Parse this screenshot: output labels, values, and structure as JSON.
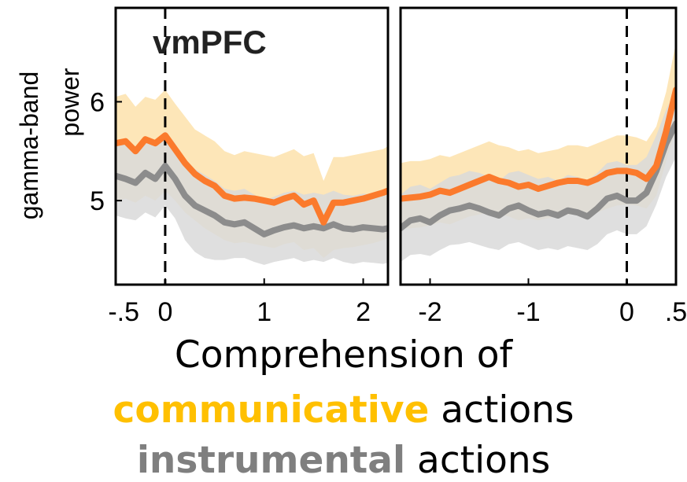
{
  "colors": {
    "communicative": "#f7a23c",
    "communicative_line": "#fb7a2c",
    "communicative_band": "#fde3b0",
    "instrumental": "#7d7d7d",
    "instrumental_line": "#8c8c8c",
    "instrumental_band": "#d9d9d9",
    "highlight_orange": "#ffc000",
    "highlight_gray": "#7f7f7f"
  },
  "caption": {
    "line1": "Comprehension of",
    "communicative_word": "communicative",
    "line2_rest": " actions",
    "instrumental_word": "instrumental",
    "line3_rest": " actions"
  },
  "chart_data": [
    {
      "type": "line",
      "title": "vmPFC",
      "ylabel": "gamma-band power",
      "xlabel": "",
      "xlim": [
        -0.5,
        2.25
      ],
      "ylim": [
        4.15,
        6.95
      ],
      "xticks": [
        -0.5,
        0,
        1,
        2
      ],
      "xtick_labels": [
        "-.5",
        "0",
        "1",
        "2"
      ],
      "yticks": [
        5,
        6
      ],
      "ytick_labels": [
        "5",
        "6"
      ],
      "event_line_x": 0,
      "series": [
        {
          "key": "communicative",
          "x": [
            -0.5,
            -0.4,
            -0.3,
            -0.2,
            -0.1,
            0,
            0.1,
            0.2,
            0.3,
            0.4,
            0.5,
            0.6,
            0.7,
            0.8,
            0.9,
            1.0,
            1.1,
            1.2,
            1.3,
            1.4,
            1.5,
            1.6,
            1.7,
            1.8,
            1.9,
            2.0,
            2.1,
            2.2,
            2.25
          ],
          "y": [
            5.58,
            5.6,
            5.5,
            5.62,
            5.58,
            5.66,
            5.52,
            5.38,
            5.27,
            5.2,
            5.15,
            5.05,
            5.02,
            5.03,
            5.02,
            5.0,
            4.98,
            5.02,
            5.05,
            4.96,
            5.0,
            4.78,
            4.98,
            4.98,
            5.0,
            5.02,
            5.05,
            5.08,
            5.1
          ],
          "lower": [
            5.0,
            5.02,
            4.98,
            5.05,
            5.0,
            5.1,
            5.0,
            4.88,
            4.8,
            4.72,
            4.66,
            4.6,
            4.57,
            4.58,
            4.56,
            4.54,
            4.52,
            4.56,
            4.58,
            4.5,
            4.52,
            4.42,
            4.5,
            4.52,
            4.53,
            4.55,
            4.57,
            4.6,
            4.62
          ],
          "upper": [
            6.05,
            6.08,
            5.95,
            6.05,
            6.02,
            6.12,
            5.98,
            5.85,
            5.72,
            5.66,
            5.6,
            5.5,
            5.46,
            5.5,
            5.48,
            5.46,
            5.44,
            5.48,
            5.52,
            5.45,
            5.48,
            5.2,
            5.44,
            5.44,
            5.46,
            5.48,
            5.5,
            5.52,
            5.55
          ]
        },
        {
          "key": "instrumental",
          "x": [
            -0.5,
            -0.4,
            -0.3,
            -0.2,
            -0.1,
            0,
            0.1,
            0.2,
            0.3,
            0.4,
            0.5,
            0.6,
            0.7,
            0.8,
            0.9,
            1.0,
            1.1,
            1.2,
            1.3,
            1.4,
            1.5,
            1.6,
            1.7,
            1.8,
            1.9,
            2.0,
            2.1,
            2.2,
            2.25
          ],
          "y": [
            5.25,
            5.22,
            5.18,
            5.28,
            5.22,
            5.35,
            5.22,
            5.05,
            4.95,
            4.9,
            4.85,
            4.78,
            4.76,
            4.78,
            4.72,
            4.66,
            4.7,
            4.73,
            4.75,
            4.72,
            4.74,
            4.72,
            4.76,
            4.72,
            4.71,
            4.73,
            4.72,
            4.71,
            4.72
          ],
          "lower": [
            4.85,
            4.82,
            4.8,
            4.88,
            4.83,
            4.95,
            4.82,
            4.6,
            4.48,
            4.42,
            4.4,
            4.4,
            4.42,
            4.42,
            4.38,
            4.35,
            4.38,
            4.4,
            4.42,
            4.38,
            4.4,
            4.38,
            4.42,
            4.38,
            4.36,
            4.38,
            4.37,
            4.36,
            4.37
          ],
          "upper": [
            5.6,
            5.58,
            5.5,
            5.62,
            5.56,
            5.7,
            5.58,
            5.42,
            5.32,
            5.26,
            5.2,
            5.12,
            5.1,
            5.12,
            5.06,
            5.0,
            5.04,
            5.08,
            5.1,
            5.06,
            5.08,
            5.06,
            5.1,
            5.06,
            5.05,
            5.07,
            5.06,
            5.05,
            5.06
          ]
        }
      ]
    },
    {
      "type": "line",
      "title": "",
      "ylabel": "",
      "xlabel": "",
      "xlim": [
        -2.3,
        0.5
      ],
      "ylim": [
        4.15,
        6.95
      ],
      "xticks": [
        -2,
        -1,
        0,
        0.5
      ],
      "xtick_labels": [
        "-2",
        "-1",
        "0",
        ".5"
      ],
      "yticks": [],
      "ytick_labels": [],
      "event_line_x": 0,
      "series": [
        {
          "key": "communicative",
          "x": [
            -2.3,
            -2.2,
            -2.1,
            -2.0,
            -1.9,
            -1.8,
            -1.7,
            -1.6,
            -1.5,
            -1.4,
            -1.3,
            -1.2,
            -1.1,
            -1.0,
            -0.9,
            -0.8,
            -0.7,
            -0.6,
            -0.5,
            -0.4,
            -0.3,
            -0.2,
            -0.1,
            0,
            0.1,
            0.2,
            0.3,
            0.4,
            0.5
          ],
          "y": [
            5.02,
            5.03,
            5.04,
            5.06,
            5.1,
            5.08,
            5.12,
            5.16,
            5.2,
            5.24,
            5.2,
            5.18,
            5.14,
            5.16,
            5.12,
            5.15,
            5.18,
            5.2,
            5.2,
            5.18,
            5.22,
            5.28,
            5.3,
            5.3,
            5.28,
            5.22,
            5.35,
            5.7,
            6.12
          ],
          "lower": [
            4.72,
            4.72,
            4.73,
            4.75,
            4.78,
            4.76,
            4.8,
            4.84,
            4.86,
            4.88,
            4.86,
            4.84,
            4.8,
            4.82,
            4.8,
            4.82,
            4.84,
            4.86,
            4.86,
            4.84,
            4.88,
            4.92,
            4.95,
            4.96,
            4.95,
            4.92,
            5.05,
            5.4,
            5.72
          ],
          "upper": [
            5.38,
            5.4,
            5.4,
            5.42,
            5.46,
            5.44,
            5.48,
            5.52,
            5.56,
            5.6,
            5.56,
            5.54,
            5.5,
            5.52,
            5.48,
            5.5,
            5.52,
            5.56,
            5.56,
            5.54,
            5.58,
            5.62,
            5.66,
            5.66,
            5.64,
            5.6,
            5.75,
            6.1,
            6.6
          ]
        },
        {
          "key": "instrumental",
          "x": [
            -2.3,
            -2.2,
            -2.1,
            -2.0,
            -1.9,
            -1.8,
            -1.7,
            -1.6,
            -1.5,
            -1.4,
            -1.3,
            -1.2,
            -1.1,
            -1.0,
            -0.9,
            -0.8,
            -0.7,
            -0.6,
            -0.5,
            -0.4,
            -0.3,
            -0.2,
            -0.1,
            0,
            0.1,
            0.2,
            0.3,
            0.4,
            0.5
          ],
          "y": [
            4.72,
            4.8,
            4.82,
            4.78,
            4.85,
            4.9,
            4.92,
            4.95,
            4.92,
            4.88,
            4.85,
            4.92,
            4.95,
            4.9,
            4.86,
            4.88,
            4.85,
            4.9,
            4.88,
            4.84,
            4.92,
            5.02,
            5.05,
            5.0,
            5.0,
            5.08,
            5.3,
            5.58,
            5.78
          ],
          "lower": [
            4.38,
            4.45,
            4.46,
            4.44,
            4.5,
            4.55,
            4.56,
            4.58,
            4.55,
            4.52,
            4.5,
            4.56,
            4.58,
            4.54,
            4.5,
            4.52,
            4.5,
            4.54,
            4.52,
            4.5,
            4.56,
            4.66,
            4.7,
            4.66,
            4.66,
            4.74,
            4.96,
            5.24,
            5.44
          ],
          "upper": [
            5.06,
            5.14,
            5.16,
            5.12,
            5.18,
            5.24,
            5.26,
            5.3,
            5.28,
            5.24,
            5.2,
            5.28,
            5.3,
            5.26,
            5.22,
            5.24,
            5.2,
            5.26,
            5.24,
            5.2,
            5.28,
            5.38,
            5.4,
            5.36,
            5.36,
            5.44,
            5.66,
            5.92,
            6.12
          ]
        }
      ]
    }
  ]
}
